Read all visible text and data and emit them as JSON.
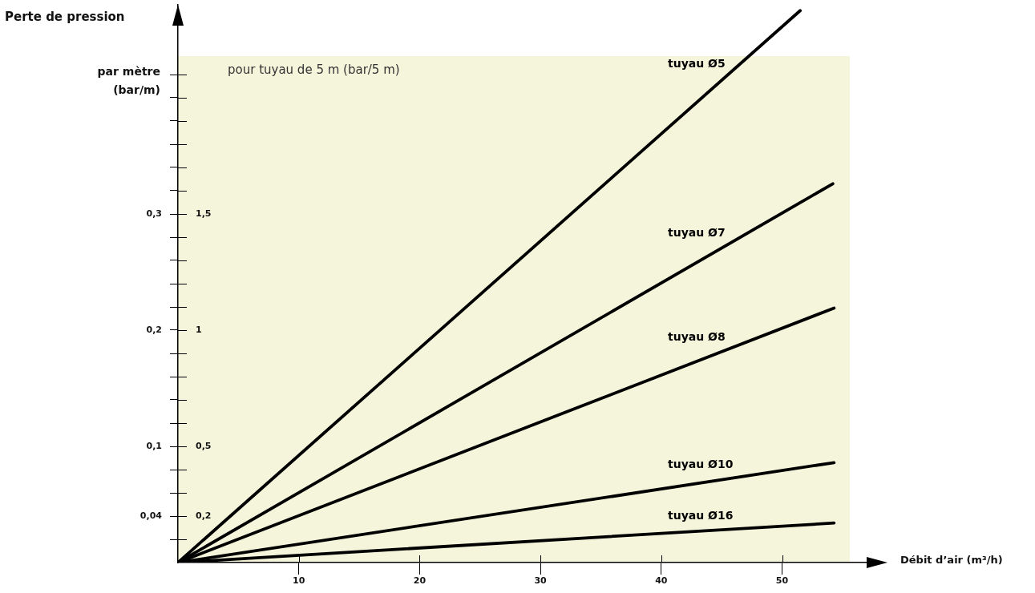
{
  "chart_data": {
    "type": "line",
    "title": "Perte de pression",
    "xlabel": "Débit d’air (m³/h)",
    "ylabel": "par mètre (bar/m)",
    "y2label": "pour tuyau de 5 m (bar/5 m)",
    "series": [
      {
        "name": "tuyau Ø5",
        "color": "#000000",
        "x": [
          0,
          51.5
        ],
        "values": [
          0,
          0.475
        ]
      },
      {
        "name": "tuyau Ø7",
        "color": "#000000",
        "x": [
          0,
          54.2
        ],
        "values": [
          0,
          0.326
        ]
      },
      {
        "name": "tuyau Ø8",
        "color": "#000000",
        "x": [
          0,
          54.3
        ],
        "values": [
          0,
          0.219
        ]
      },
      {
        "name": "tuyau Ø10",
        "color": "#000000",
        "x": [
          0,
          54.3
        ],
        "values": [
          0,
          0.086
        ]
      },
      {
        "name": "tuyau Ø16",
        "color": "#000000",
        "x": [
          0,
          54.3
        ],
        "values": [
          0,
          0.034
        ]
      }
    ],
    "xlim": [
      0,
      57
    ],
    "xticks": [
      10,
      20,
      30,
      40,
      50
    ],
    "ylim": [
      0,
      0.48
    ],
    "yticks": [
      {
        "value": 0.02,
        "label": null
      },
      {
        "value": 0.04,
        "label": "0,04"
      },
      {
        "value": 0.06,
        "label": null
      },
      {
        "value": 0.08,
        "label": null
      },
      {
        "value": 0.1,
        "label": "0,1"
      },
      {
        "value": 0.12,
        "label": null
      },
      {
        "value": 0.14,
        "label": null
      },
      {
        "value": 0.16,
        "label": null
      },
      {
        "value": 0.18,
        "label": null
      },
      {
        "value": 0.2,
        "label": "0,2"
      },
      {
        "value": 0.22,
        "label": null
      },
      {
        "value": 0.24,
        "label": null
      },
      {
        "value": 0.26,
        "label": null
      },
      {
        "value": 0.28,
        "label": null
      },
      {
        "value": 0.3,
        "label": "0,3"
      },
      {
        "value": 0.32,
        "label": null
      },
      {
        "value": 0.34,
        "label": null
      },
      {
        "value": 0.36,
        "label": null
      },
      {
        "value": 0.38,
        "label": null
      },
      {
        "value": 0.4,
        "label": null
      },
      {
        "value": 0.42,
        "label": null
      }
    ],
    "y2lim": [
      0,
      2.4
    ],
    "y2ticks": [
      {
        "value": 0.2,
        "label": "0,2"
      },
      {
        "value": 0.5,
        "label": "0,5"
      },
      {
        "value": 1,
        "label": "1"
      },
      {
        "value": 1.5,
        "label": "1,5"
      }
    ]
  }
}
